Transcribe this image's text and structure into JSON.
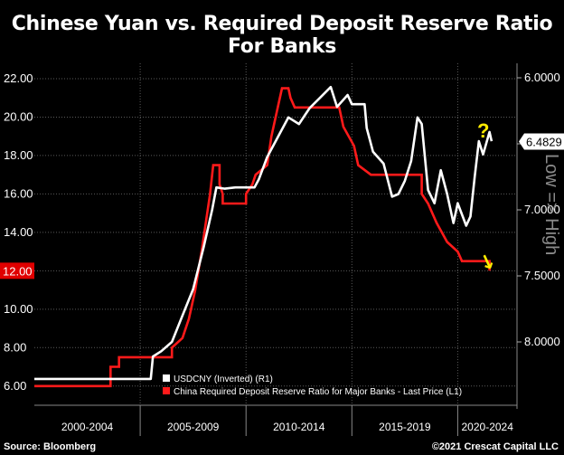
{
  "title": "Chinese Yuan vs. Required Deposit Reserve Ratio For Banks",
  "footer": {
    "source": "Source: Bloomberg",
    "credit": "©2021 Crescat Capital LLC"
  },
  "annotations": {
    "question": "?",
    "arrow": "↓"
  },
  "colors": {
    "rrr": "#ff1a1a",
    "usdcny": "#ffffff",
    "accent": "#ffeb00",
    "grid": "#5a5a5a",
    "last_tag": "#e00000"
  },
  "chart_data": {
    "type": "line",
    "title": "Chinese Yuan vs. Required Deposit Reserve Ratio For Banks",
    "x_categories": [
      "2000-2004",
      "2005-2009",
      "2010-2014",
      "2015-2019",
      "2020-2024"
    ],
    "left_axis": {
      "ticks": [
        "6.00",
        "8.00",
        "10.00",
        "12.00",
        "14.00",
        "16.00",
        "18.00",
        "20.00",
        "22.00"
      ],
      "ylim": [
        5.0,
        22.8
      ],
      "last_label": "12.00"
    },
    "right_axis": {
      "ticks": [
        "6.0000",
        "6.5000",
        "7.0000",
        "7.5000",
        "8.0000"
      ],
      "label": "Low => High",
      "inverted": true,
      "last_label": "6.4829"
    },
    "grid": true,
    "legend": {
      "placement": "bottom"
    },
    "series": [
      {
        "name": "USDCNY (Inverted) (R1)",
        "axis": "right",
        "points": [
          [
            2000.0,
            8.28
          ],
          [
            2005.5,
            8.28
          ],
          [
            2005.6,
            8.11
          ],
          [
            2006.0,
            8.07
          ],
          [
            2006.5,
            8.0
          ],
          [
            2007.0,
            7.8
          ],
          [
            2007.5,
            7.6
          ],
          [
            2008.0,
            7.28
          ],
          [
            2008.4,
            7.0
          ],
          [
            2008.6,
            6.83
          ],
          [
            2009.0,
            6.84
          ],
          [
            2009.5,
            6.83
          ],
          [
            2010.4,
            6.83
          ],
          [
            2010.6,
            6.77
          ],
          [
            2011.0,
            6.6
          ],
          [
            2011.5,
            6.45
          ],
          [
            2012.0,
            6.3
          ],
          [
            2012.5,
            6.35
          ],
          [
            2013.0,
            6.23
          ],
          [
            2013.5,
            6.15
          ],
          [
            2014.0,
            6.07
          ],
          [
            2014.3,
            6.22
          ],
          [
            2014.8,
            6.13
          ],
          [
            2015.0,
            6.2
          ],
          [
            2015.6,
            6.2
          ],
          [
            2015.7,
            6.38
          ],
          [
            2016.0,
            6.56
          ],
          [
            2016.5,
            6.65
          ],
          [
            2016.9,
            6.9
          ],
          [
            2017.2,
            6.88
          ],
          [
            2017.5,
            6.78
          ],
          [
            2017.8,
            6.63
          ],
          [
            2018.1,
            6.3
          ],
          [
            2018.3,
            6.35
          ],
          [
            2018.6,
            6.85
          ],
          [
            2018.9,
            6.95
          ],
          [
            2019.2,
            6.7
          ],
          [
            2019.5,
            6.88
          ],
          [
            2019.8,
            7.1
          ],
          [
            2020.0,
            6.95
          ],
          [
            2020.4,
            7.12
          ],
          [
            2020.6,
            7.05
          ],
          [
            2020.8,
            6.75
          ],
          [
            2021.0,
            6.48
          ],
          [
            2021.2,
            6.58
          ],
          [
            2021.5,
            6.41
          ],
          [
            2021.6,
            6.48
          ]
        ]
      },
      {
        "name": "China Required Deposit Reserve Ratio for Major Banks - Last Price (L1)",
        "axis": "left",
        "points": [
          [
            2000.0,
            6.0
          ],
          [
            2003.6,
            6.0
          ],
          [
            2003.6,
            7.0
          ],
          [
            2004.0,
            7.0
          ],
          [
            2004.0,
            7.5
          ],
          [
            2006.5,
            7.5
          ],
          [
            2006.5,
            8.0
          ],
          [
            2007.0,
            8.5
          ],
          [
            2007.3,
            9.5
          ],
          [
            2007.6,
            11.0
          ],
          [
            2007.9,
            13.0
          ],
          [
            2008.1,
            14.5
          ],
          [
            2008.3,
            16.0
          ],
          [
            2008.45,
            17.5
          ],
          [
            2008.75,
            17.5
          ],
          [
            2008.75,
            16.5
          ],
          [
            2008.9,
            16.0
          ],
          [
            2008.9,
            15.5
          ],
          [
            2010.0,
            15.5
          ],
          [
            2010.0,
            16.0
          ],
          [
            2010.3,
            16.5
          ],
          [
            2010.45,
            17.0
          ],
          [
            2011.0,
            17.5
          ],
          [
            2011.2,
            19.0
          ],
          [
            2011.5,
            20.5
          ],
          [
            2011.7,
            21.5
          ],
          [
            2012.0,
            21.5
          ],
          [
            2012.1,
            21.0
          ],
          [
            2012.3,
            20.5
          ],
          [
            2014.4,
            20.5
          ],
          [
            2014.6,
            19.5
          ],
          [
            2015.1,
            18.5
          ],
          [
            2015.3,
            17.5
          ],
          [
            2015.9,
            17.0
          ],
          [
            2018.3,
            17.0
          ],
          [
            2018.3,
            16.0
          ],
          [
            2018.6,
            15.5
          ],
          [
            2019.0,
            14.5
          ],
          [
            2019.5,
            13.5
          ],
          [
            2020.0,
            13.0
          ],
          [
            2020.2,
            12.5
          ],
          [
            2021.5,
            12.5
          ],
          [
            2021.5,
            12.0
          ]
        ]
      }
    ]
  }
}
